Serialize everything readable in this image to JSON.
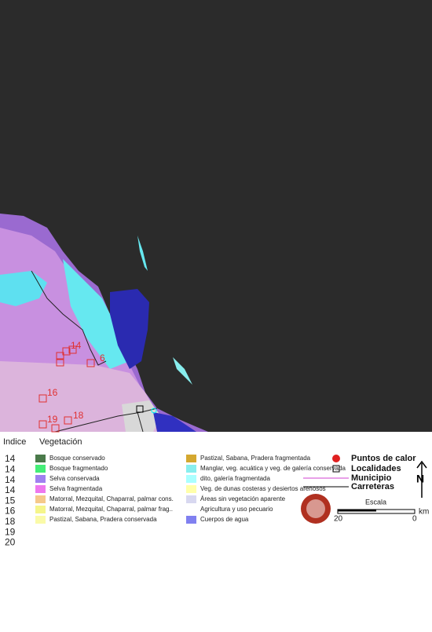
{
  "map": {
    "labels": [
      "14",
      "6",
      "16",
      "18",
      "19"
    ]
  },
  "legend": {
    "index_header": "Indice",
    "vegetation_header": "Vegetación",
    "index_values": [
      "14",
      "14",
      "14",
      "14",
      "15",
      "16",
      "18",
      "19",
      "20"
    ],
    "vegetation": [
      {
        "label": "Bosque conservado",
        "color": "#4a7a4a"
      },
      {
        "label": "Bosque fragmentado",
        "color": "#44ee77"
      },
      {
        "label": "Selva conservada",
        "color": "#a080f0"
      },
      {
        "label": "Selva fragmentada",
        "color": "#ee77ee"
      },
      {
        "label": "Matorral, Mezquital, Chaparral, palmar cons.",
        "color": "#f5c98a"
      },
      {
        "label": "Matorral, Mezquital, Chaparral, palmar frag..",
        "color": "#f5f58a"
      },
      {
        "label": "Pastizal, Sabana, Pradera conservada",
        "color": "#fafaa8"
      },
      {
        "label": "Pastizal, Sabana, Pradera fragmentada",
        "color": "#d4a830"
      },
      {
        "label": "Manglar, veg. acuática y veg. de galería conservada",
        "color": "#88eeee"
      },
      {
        "label": "dito,  galería fragmentada",
        "color": "#aaffff"
      },
      {
        "label": "Veg. de dunas costeras y desiertos arenosos",
        "color": "#ffffaa"
      },
      {
        "label": "Áreas sin vegetación aparente",
        "color": "#d8d8f0"
      },
      {
        "label": "Agricultura y uso pecuario",
        "color": "#ffffff"
      },
      {
        "label": "Cuerpos de agua",
        "color": "#8080f0"
      }
    ],
    "symbols": [
      "Puntos de calor",
      "Localidades",
      "Municipio",
      "Carreteras"
    ],
    "scale_title": "Escala",
    "scale_left": "20",
    "scale_right": "0",
    "scale_unit": "km",
    "north": "N"
  }
}
